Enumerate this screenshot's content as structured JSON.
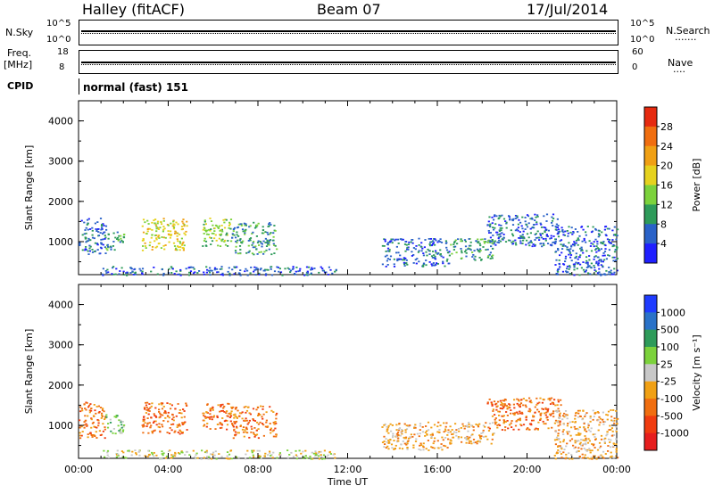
{
  "header": {
    "station": "Halley (fitACF)",
    "beam": "Beam 07",
    "date": "17/Jul/2014"
  },
  "top_panel": {
    "left_label": "N.Sky",
    "right_label": "N.Search",
    "left_ticks": [
      "10^5",
      "10^0"
    ],
    "right_ticks": [
      "10^5",
      "10^0"
    ],
    "dots": "·······"
  },
  "freq_panel": {
    "left_label_line1": "Freq.",
    "left_label_line2": "[MHz]",
    "right_label": "Nave",
    "left_ticks": [
      "18",
      "8"
    ],
    "right_ticks": [
      "60",
      "0"
    ],
    "dots": "····"
  },
  "cpid": {
    "label": "CPID",
    "value": "normal (fast) 151"
  },
  "chart_data": [
    {
      "type": "heatmap",
      "name": "power",
      "ylabel": "Slant Range [km]",
      "yticks": [
        "1000",
        "2000",
        "3000",
        "4000"
      ],
      "ylim": [
        180,
        4500
      ],
      "xlim": [
        0,
        24
      ],
      "xticks": [
        "00:00",
        "04:00",
        "08:00",
        "12:00",
        "16:00",
        "20:00",
        "00:00"
      ],
      "colorbar": {
        "label": "Power [dB]",
        "ticks": [
          "4",
          "8",
          "12",
          "16",
          "20",
          "24",
          "28"
        ],
        "colors": [
          "#1f1fff",
          "#2a62c8",
          "#2e9b5a",
          "#7cd23c",
          "#e6d21e",
          "#f0a014",
          "#f06e10",
          "#e62a10"
        ]
      },
      "echo_regions": [
        {
          "t0": 0.0,
          "t1": 1.2,
          "r0": 700,
          "r1": 1600,
          "level": 1
        },
        {
          "t0": 1.2,
          "t1": 2.0,
          "r0": 800,
          "r1": 1300,
          "level": 2
        },
        {
          "t0": 2.8,
          "t1": 4.8,
          "r0": 800,
          "r1": 1600,
          "level": 4
        },
        {
          "t0": 5.5,
          "t1": 6.8,
          "r0": 900,
          "r1": 1600,
          "level": 3
        },
        {
          "t0": 6.8,
          "t1": 8.8,
          "r0": 700,
          "r1": 1500,
          "level": 2
        },
        {
          "t0": 1.0,
          "t1": 11.5,
          "r0": 180,
          "r1": 400,
          "level": 1
        },
        {
          "t0": 13.5,
          "t1": 16.5,
          "r0": 400,
          "r1": 1100,
          "level": 1
        },
        {
          "t0": 16.5,
          "t1": 18.5,
          "r0": 550,
          "r1": 1100,
          "level": 2
        },
        {
          "t0": 18.2,
          "t1": 21.5,
          "r0": 900,
          "r1": 1700,
          "level": 1
        },
        {
          "t0": 21.2,
          "t1": 24.0,
          "r0": 180,
          "r1": 1400,
          "level": 1
        }
      ]
    },
    {
      "type": "heatmap",
      "name": "velocity",
      "ylabel": "Slant Range [km]",
      "yticks": [
        "1000",
        "2000",
        "3000",
        "4000"
      ],
      "ylim": [
        180,
        4500
      ],
      "xlim": [
        0,
        24
      ],
      "xticks": [
        "00:00",
        "04:00",
        "08:00",
        "12:00",
        "16:00",
        "20:00",
        "00:00"
      ],
      "xlabel": "Time UT",
      "colorbar": {
        "label": "Velocity [m s⁻¹]",
        "ticks": [
          "1000",
          "500",
          "100",
          "25",
          "-25",
          "-100",
          "-500",
          "-1000"
        ],
        "colors": [
          "#1f3cff",
          "#2a72c8",
          "#2e9b5a",
          "#7cd23c",
          "#c8c8c8",
          "#f0a014",
          "#f06e10",
          "#f03c10",
          "#e61e1e"
        ]
      },
      "echo_regions": [
        {
          "t0": 0.0,
          "t1": 1.2,
          "r0": 700,
          "r1": 1600,
          "level": 6
        },
        {
          "t0": 1.2,
          "t1": 2.0,
          "r0": 800,
          "r1": 1300,
          "level": 3
        },
        {
          "t0": 2.8,
          "t1": 4.8,
          "r0": 800,
          "r1": 1600,
          "level": 6
        },
        {
          "t0": 5.5,
          "t1": 6.8,
          "r0": 900,
          "r1": 1600,
          "level": 6
        },
        {
          "t0": 6.8,
          "t1": 8.8,
          "r0": 700,
          "r1": 1500,
          "level": 6
        },
        {
          "t0": 1.0,
          "t1": 11.5,
          "r0": 180,
          "r1": 400,
          "level": 4
        },
        {
          "t0": 13.5,
          "t1": 16.5,
          "r0": 400,
          "r1": 1100,
          "level": 5
        },
        {
          "t0": 16.5,
          "t1": 18.5,
          "r0": 550,
          "r1": 1100,
          "level": 5
        },
        {
          "t0": 18.2,
          "t1": 21.5,
          "r0": 900,
          "r1": 1700,
          "level": 6
        },
        {
          "t0": 21.2,
          "t1": 24.0,
          "r0": 180,
          "r1": 1400,
          "level": 5
        }
      ]
    }
  ]
}
